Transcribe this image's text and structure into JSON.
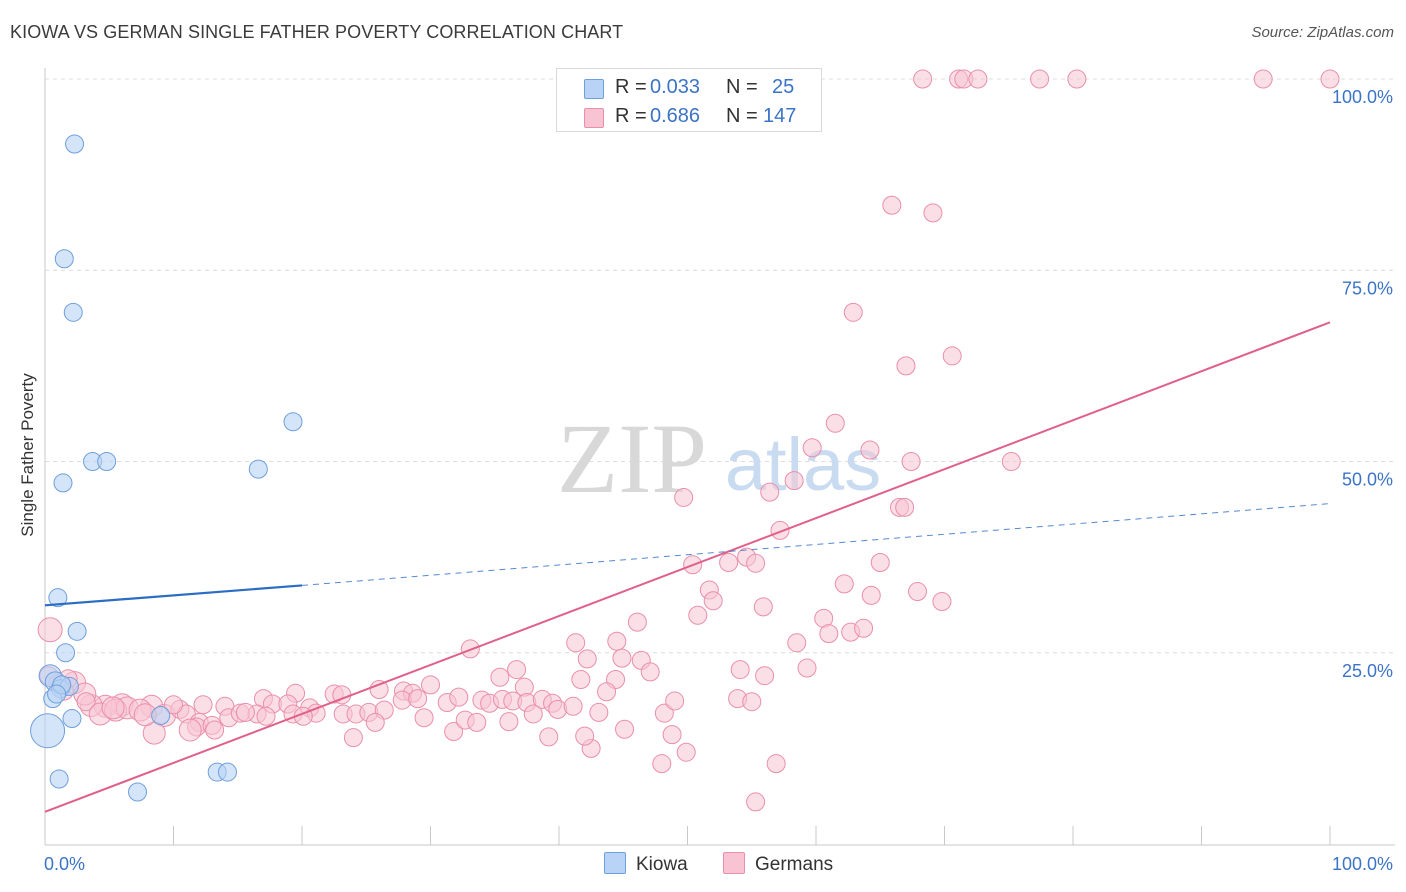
{
  "title": "KIOWA VS GERMAN SINGLE FATHER POVERTY CORRELATION CHART",
  "source": "Source: ZipAtlas.com",
  "watermark": {
    "zip": "ZIP",
    "atlas": "atlas"
  },
  "colors": {
    "kiowa_fill": "#b8d3f5",
    "kiowa_stroke": "#6f9fdc",
    "kiowa_line": "#2b6cc4",
    "germans_fill": "#f8c4d3",
    "germans_stroke": "#ea8fab",
    "germans_line": "#e0608a",
    "tick_label": "#3b74c6"
  },
  "legend": {
    "r_label": "R =",
    "n_label": "N =",
    "rows": [
      {
        "series": "Kiowa",
        "r": "0.033",
        "n": "25"
      },
      {
        "series": "Germans",
        "r": "0.686",
        "n": "147"
      }
    ]
  },
  "bottom_legend": {
    "kiowa": "Kiowa",
    "germans": "Germans"
  },
  "chart_data": {
    "type": "scatter",
    "title": "KIOWA VS GERMAN SINGLE FATHER POVERTY CORRELATION CHART",
    "xlabel": "",
    "ylabel": "Single Father Poverty",
    "xlim": [
      0,
      100
    ],
    "ylim": [
      0,
      105
    ],
    "x_tick_labels": [
      "0.0%",
      "100.0%"
    ],
    "y_ticks": [
      25,
      50,
      75,
      100
    ],
    "y_tick_labels": [
      "25.0%",
      "50.0%",
      "75.0%",
      "100.0%"
    ],
    "grid": "horizontal dashed",
    "legend_position": "top-center",
    "series": [
      {
        "name": "Kiowa",
        "r": 0.033,
        "n": 25,
        "trend_solid": [
          [
            0,
            31.2
          ],
          [
            20,
            33.8
          ]
        ],
        "trend_dashed": [
          [
            20,
            33.8
          ],
          [
            100,
            44.5
          ]
        ],
        "points": [
          [
            2.3,
            91.5,
            9
          ],
          [
            1.5,
            76.5,
            9
          ],
          [
            2.2,
            69.5,
            9
          ],
          [
            19.3,
            55.2,
            9
          ],
          [
            3.7,
            50.0,
            9
          ],
          [
            4.8,
            50.0,
            9
          ],
          [
            16.6,
            49.0,
            9
          ],
          [
            1.4,
            47.2,
            9
          ],
          [
            1.0,
            32.2,
            9
          ],
          [
            2.5,
            27.8,
            9
          ],
          [
            1.6,
            25.0,
            9
          ],
          [
            0.4,
            22.0,
            11
          ],
          [
            0.8,
            21.2,
            10
          ],
          [
            1.2,
            20.3,
            9
          ],
          [
            1.9,
            20.6,
            9
          ],
          [
            0.6,
            19.0,
            9
          ],
          [
            0.2,
            14.8,
            17
          ],
          [
            2.1,
            16.4,
            9
          ],
          [
            9.0,
            16.8,
            9
          ],
          [
            13.4,
            9.4,
            9
          ],
          [
            14.2,
            9.4,
            9
          ],
          [
            1.1,
            8.5,
            9
          ],
          [
            7.2,
            6.8,
            9
          ],
          [
            1.3,
            20.8,
            9
          ],
          [
            0.9,
            19.6,
            9
          ]
        ]
      },
      {
        "name": "Germans",
        "r": 0.686,
        "n": 147,
        "trend": [
          [
            0,
            4.2
          ],
          [
            100,
            68.2
          ]
        ],
        "points": [
          [
            68.3,
            100,
            9
          ],
          [
            71.1,
            100,
            9
          ],
          [
            71.5,
            100,
            9
          ],
          [
            72.6,
            100,
            9
          ],
          [
            77.4,
            100,
            9
          ],
          [
            80.3,
            100,
            9
          ],
          [
            94.8,
            100,
            9
          ],
          [
            100,
            100,
            9
          ],
          [
            65.9,
            83.5,
            9
          ],
          [
            69.1,
            82.5,
            9
          ],
          [
            62.9,
            69.5,
            9
          ],
          [
            70.6,
            63.8,
            9
          ],
          [
            67.0,
            62.5,
            9
          ],
          [
            61.5,
            55.0,
            9
          ],
          [
            59.7,
            51.8,
            9
          ],
          [
            64.2,
            51.5,
            9
          ],
          [
            75.2,
            50.0,
            9
          ],
          [
            67.4,
            50.0,
            9
          ],
          [
            58.3,
            47.5,
            9
          ],
          [
            49.7,
            45.3,
            9
          ],
          [
            56.4,
            46.0,
            9
          ],
          [
            66.5,
            44.0,
            9
          ],
          [
            66.9,
            44.0,
            9
          ],
          [
            57.2,
            41.0,
            9
          ],
          [
            54.6,
            37.5,
            9
          ],
          [
            53.2,
            36.8,
            9
          ],
          [
            50.4,
            36.5,
            9
          ],
          [
            55.3,
            36.7,
            9
          ],
          [
            65.0,
            36.8,
            9
          ],
          [
            62.2,
            34.0,
            9
          ],
          [
            51.7,
            33.2,
            9
          ],
          [
            52.0,
            31.8,
            9
          ],
          [
            64.3,
            32.5,
            9
          ],
          [
            67.9,
            33.0,
            9
          ],
          [
            69.8,
            31.7,
            9
          ],
          [
            55.9,
            31.0,
            9
          ],
          [
            50.8,
            29.9,
            9
          ],
          [
            60.6,
            29.5,
            9
          ],
          [
            46.1,
            29.0,
            9
          ],
          [
            61.0,
            27.5,
            9
          ],
          [
            62.7,
            27.7,
            9
          ],
          [
            63.7,
            28.2,
            9
          ],
          [
            58.5,
            26.3,
            9
          ],
          [
            41.3,
            26.3,
            9
          ],
          [
            44.5,
            26.5,
            9
          ],
          [
            33.1,
            25.5,
            9
          ],
          [
            44.9,
            24.3,
            9
          ],
          [
            46.4,
            24.0,
            9
          ],
          [
            42.2,
            24.2,
            9
          ],
          [
            36.7,
            22.8,
            9
          ],
          [
            47.1,
            22.5,
            9
          ],
          [
            54.1,
            22.8,
            9
          ],
          [
            56.0,
            22.0,
            9
          ],
          [
            59.3,
            23.0,
            9
          ],
          [
            37.3,
            20.5,
            9
          ],
          [
            41.7,
            21.5,
            9
          ],
          [
            44.4,
            21.5,
            9
          ],
          [
            35.4,
            21.8,
            9
          ],
          [
            30.0,
            20.8,
            9
          ],
          [
            26.0,
            20.2,
            9
          ],
          [
            27.9,
            20.0,
            9
          ],
          [
            28.6,
            19.7,
            9
          ],
          [
            19.5,
            19.7,
            9
          ],
          [
            22.5,
            19.6,
            9
          ],
          [
            23.1,
            19.5,
            9
          ],
          [
            17.0,
            19.0,
            9
          ],
          [
            12.3,
            18.2,
            9
          ],
          [
            14.0,
            18.0,
            9
          ],
          [
            8.3,
            18.0,
            11
          ],
          [
            6.0,
            18.2,
            11
          ],
          [
            4.7,
            18.0,
            11
          ],
          [
            3.6,
            18.1,
            11
          ],
          [
            2.3,
            21.1,
            11
          ],
          [
            1.8,
            21.6,
            9
          ],
          [
            0.4,
            28.0,
            12
          ],
          [
            0.3,
            22.0,
            9
          ],
          [
            1.0,
            21.0,
            9
          ],
          [
            1.5,
            20.0,
            9
          ],
          [
            3.1,
            19.6,
            11
          ],
          [
            3.2,
            18.6,
            9
          ],
          [
            4.3,
            17.0,
            11
          ],
          [
            5.5,
            17.5,
            11
          ],
          [
            6.4,
            17.8,
            11
          ],
          [
            7.4,
            17.5,
            11
          ],
          [
            9.3,
            16.8,
            11
          ],
          [
            10.5,
            17.6,
            9
          ],
          [
            11.0,
            17.0,
            9
          ],
          [
            12.0,
            15.9,
            9
          ],
          [
            11.8,
            15.3,
            9
          ],
          [
            13.0,
            15.5,
            9
          ],
          [
            14.3,
            16.5,
            9
          ],
          [
            15.2,
            17.1,
            9
          ],
          [
            16.5,
            17.0,
            9
          ],
          [
            17.7,
            18.3,
            9
          ],
          [
            18.9,
            18.3,
            9
          ],
          [
            19.3,
            17.0,
            9
          ],
          [
            20.6,
            17.8,
            9
          ],
          [
            21.1,
            17.1,
            9
          ],
          [
            23.2,
            17.0,
            9
          ],
          [
            24.2,
            17.0,
            9
          ],
          [
            25.2,
            17.2,
            9
          ],
          [
            26.4,
            17.5,
            9
          ],
          [
            27.8,
            18.8,
            9
          ],
          [
            29.0,
            19.0,
            9
          ],
          [
            29.5,
            16.5,
            9
          ],
          [
            31.3,
            18.5,
            9
          ],
          [
            31.8,
            14.7,
            9
          ],
          [
            32.2,
            19.2,
            9
          ],
          [
            32.7,
            16.2,
            9
          ],
          [
            33.6,
            15.9,
            9
          ],
          [
            34.0,
            18.8,
            9
          ],
          [
            34.6,
            18.4,
            9
          ],
          [
            35.6,
            18.9,
            9
          ],
          [
            36.4,
            18.7,
            9
          ],
          [
            37.5,
            18.5,
            9
          ],
          [
            38.7,
            18.9,
            9
          ],
          [
            39.5,
            18.4,
            9
          ],
          [
            39.2,
            14.0,
            9
          ],
          [
            39.9,
            17.6,
            9
          ],
          [
            41.1,
            18.0,
            9
          ],
          [
            42.5,
            12.5,
            9
          ],
          [
            42.0,
            14.1,
            9
          ],
          [
            43.1,
            17.2,
            9
          ],
          [
            43.7,
            19.9,
            9
          ],
          [
            45.1,
            15.0,
            9
          ],
          [
            48.2,
            17.1,
            9
          ],
          [
            49.0,
            18.7,
            9
          ],
          [
            48.0,
            10.5,
            9
          ],
          [
            48.8,
            14.3,
            9
          ],
          [
            49.9,
            12.0,
            9
          ],
          [
            53.9,
            19.0,
            9
          ],
          [
            55.0,
            18.6,
            9
          ],
          [
            56.9,
            10.5,
            9
          ],
          [
            55.3,
            5.5,
            9
          ],
          [
            24.0,
            13.9,
            9
          ],
          [
            20.1,
            16.7,
            9
          ],
          [
            17.2,
            16.7,
            9
          ],
          [
            15.6,
            17.2,
            9
          ],
          [
            13.2,
            14.9,
            9
          ],
          [
            11.3,
            14.9,
            11
          ],
          [
            8.5,
            14.5,
            11
          ],
          [
            10.0,
            18.2,
            9
          ],
          [
            7.8,
            16.9,
            11
          ],
          [
            5.3,
            17.8,
            11
          ],
          [
            36.1,
            16.0,
            9
          ],
          [
            38.0,
            17.0,
            9
          ],
          [
            25.7,
            15.9,
            9
          ]
        ]
      }
    ]
  }
}
